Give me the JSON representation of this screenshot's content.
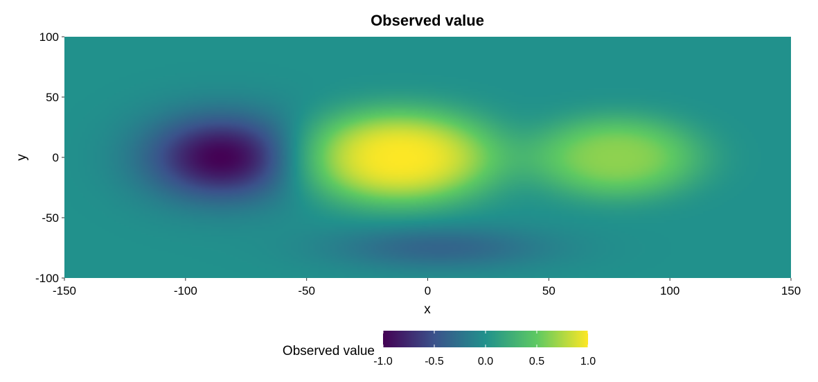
{
  "chart_data": {
    "type": "heatmap",
    "title": "Observed value",
    "xlabel": "x",
    "ylabel": "y",
    "xlim": [
      -150,
      150
    ],
    "ylim": [
      -100,
      100
    ],
    "x_ticks": [
      -150,
      -100,
      -50,
      0,
      50,
      100,
      150
    ],
    "y_ticks": [
      -100,
      -50,
      0,
      50,
      100
    ],
    "x_tick_labels": [
      "-150",
      "-100",
      "-50",
      "0",
      "50",
      "100",
      "150"
    ],
    "y_tick_labels": [
      "-100",
      "-50",
      "0",
      "50",
      "100"
    ],
    "value_range": [
      -1.0,
      1.0
    ],
    "baseline_value": 0.0,
    "colormap": "viridis",
    "colormap_stops": [
      "#440154",
      "#3b528b",
      "#21918c",
      "#5ec962",
      "#fde725"
    ],
    "features": [
      {
        "kind": "minimum",
        "x": -85,
        "y": 0,
        "value": -1.0
      },
      {
        "kind": "maximum",
        "x": -12,
        "y": 0,
        "value": 1.0
      },
      {
        "kind": "maximum",
        "x": 78,
        "y": 0,
        "value": 0.65
      },
      {
        "kind": "minimum",
        "x": 5,
        "y": -75,
        "value": -0.35
      }
    ],
    "legend": {
      "title": "Observed value",
      "position": "bottom",
      "ticks": [
        -1.0,
        -0.5,
        0.0,
        0.5,
        1.0
      ],
      "tick_labels": [
        "-1.0",
        "-0.5",
        "0.0",
        "0.5",
        "1.0"
      ]
    }
  }
}
